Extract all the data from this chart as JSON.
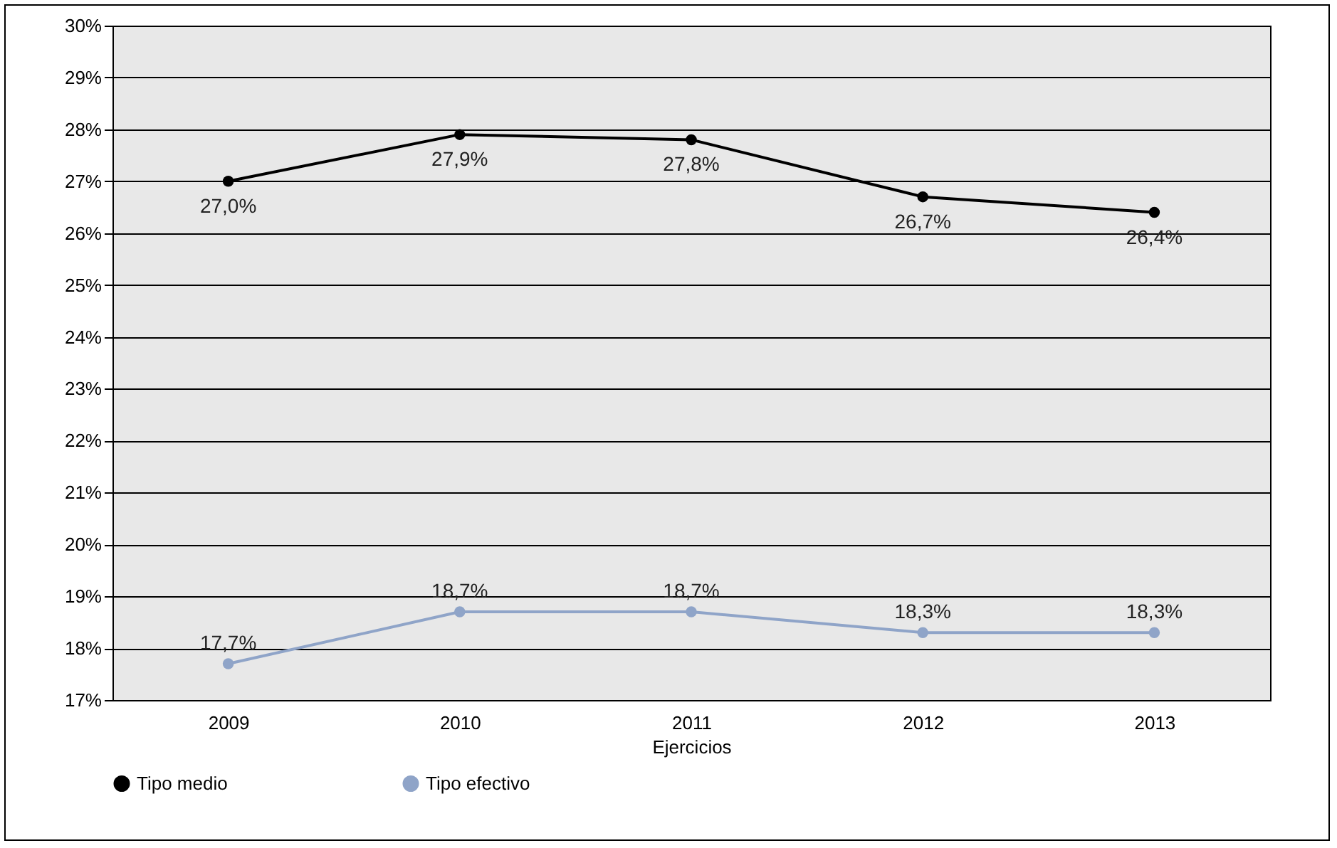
{
  "chart_data": {
    "type": "line",
    "xlabel": "Ejercicios",
    "categories": [
      "2009",
      "2010",
      "2011",
      "2012",
      "2013"
    ],
    "series": [
      {
        "name": "Tipo medio",
        "color": "#000000",
        "values": [
          27.0,
          27.9,
          27.8,
          26.7,
          26.4
        ],
        "value_labels": [
          "27,0%",
          "27,9%",
          "27,8%",
          "26,7%",
          "26,4%"
        ]
      },
      {
        "name": "Tipo efectivo",
        "color": "#8fa4c8",
        "values": [
          17.7,
          18.7,
          18.7,
          18.3,
          18.3
        ],
        "value_labels": [
          "17,7%",
          "18,7%",
          "18,7%",
          "18,3%",
          "18,3%"
        ]
      }
    ],
    "ylim": [
      17,
      30
    ],
    "yticks": [
      {
        "value": 17,
        "label": "17%"
      },
      {
        "value": 18,
        "label": "18%"
      },
      {
        "value": 19,
        "label": "19%"
      },
      {
        "value": 20,
        "label": "20%"
      },
      {
        "value": 21,
        "label": "21%"
      },
      {
        "value": 22,
        "label": "22%"
      },
      {
        "value": 23,
        "label": "23%"
      },
      {
        "value": 24,
        "label": "24%"
      },
      {
        "value": 25,
        "label": "25%"
      },
      {
        "value": 26,
        "label": "26%"
      },
      {
        "value": 27,
        "label": "27%"
      },
      {
        "value": 28,
        "label": "28%"
      },
      {
        "value": 29,
        "label": "29%"
      },
      {
        "value": 30,
        "label": "30%"
      }
    ],
    "grid": "y",
    "legend": "bottom",
    "marker": "circle",
    "line_style": "solid"
  }
}
